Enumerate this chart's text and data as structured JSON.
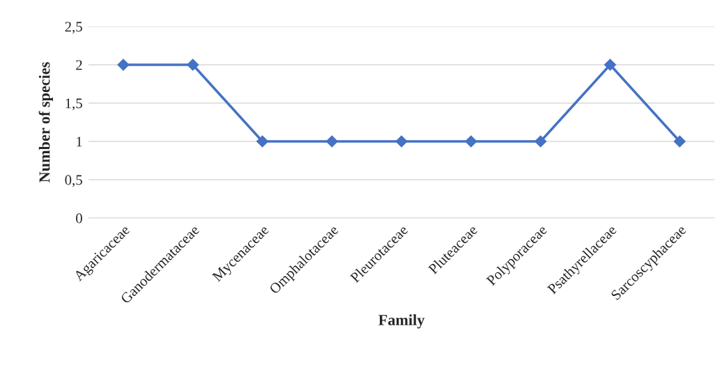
{
  "chart_data": {
    "type": "line",
    "xlabel": "Family",
    "ylabel": "Number of species",
    "categories": [
      "Agaricaceae",
      "Ganodermataceae",
      "Mycenaceae",
      "Omphalotaceae",
      "Pleurotaceae",
      "Pluteaceae",
      "Polyporaceae",
      "Psathyrellaceae",
      "Sarcoscyphaceae"
    ],
    "series": [
      {
        "color": "#4472c4",
        "values": [
          2,
          2,
          1,
          1,
          1,
          1,
          1,
          2,
          1
        ]
      }
    ],
    "ylim": [
      0,
      2.5
    ],
    "yticks": [
      0,
      {
        "value": 0.5,
        "label": "0,5"
      },
      1,
      {
        "value": 1.5,
        "label": "1,5"
      },
      2,
      {
        "value": 2.5,
        "label": "2,5"
      }
    ],
    "grid": "y",
    "marker": "diamond",
    "line_style": "solid",
    "legend": false
  }
}
